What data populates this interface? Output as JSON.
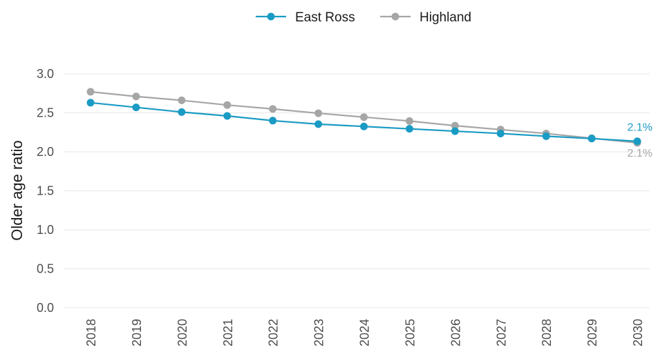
{
  "chart_data": {
    "type": "line",
    "title": "",
    "xlabel": "",
    "ylabel": "Older age ratio",
    "x": [
      "2018",
      "2019",
      "2020",
      "2021",
      "2022",
      "2023",
      "2024",
      "2025",
      "2026",
      "2027",
      "2028",
      "2029",
      "2030"
    ],
    "ylim": [
      0,
      3.0
    ],
    "yticks": [
      "0.0",
      "0.5",
      "1.0",
      "1.5",
      "2.0",
      "2.5",
      "3.0"
    ],
    "grid": "horizontal",
    "legend_position": "top",
    "series": [
      {
        "name": "East Ross",
        "color": "#1a9bc4",
        "values": [
          2.63,
          2.57,
          2.51,
          2.46,
          2.4,
          2.355,
          2.325,
          2.295,
          2.265,
          2.235,
          2.2,
          2.17,
          2.135
        ],
        "end_label": "2.1%"
      },
      {
        "name": "Highland",
        "color": "#a6a6a6",
        "values": [
          2.77,
          2.71,
          2.66,
          2.6,
          2.55,
          2.495,
          2.445,
          2.395,
          2.335,
          2.285,
          2.235,
          2.175,
          2.115
        ],
        "end_label": "2.1%"
      }
    ]
  }
}
